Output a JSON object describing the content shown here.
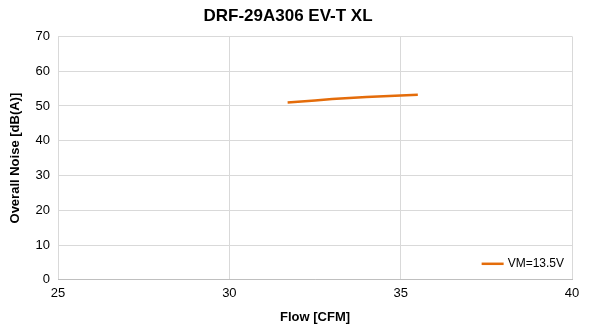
{
  "chart_data": {
    "type": "line",
    "title": "DRF-29A306 EV-T XL",
    "x_label": "Flow [CFM]",
    "y_label": "Overall Noise [dB(A)]",
    "x": [
      31.7,
      32.5,
      33.5,
      34.5,
      35.5
    ],
    "series": [
      {
        "name": "VM=13.5V",
        "color": "#e46c0a",
        "values": [
          51.0,
          51.6,
          52.3,
          52.8,
          53.2
        ],
        "marker": "none",
        "line_style": "solid"
      }
    ],
    "xlim": [
      25,
      40
    ],
    "xticks": [
      25,
      30,
      35,
      40
    ],
    "ylim": [
      0,
      70
    ],
    "yticks": [
      0,
      10,
      20,
      30,
      40,
      50,
      60,
      70
    ],
    "grid": true,
    "legend": "lower right"
  }
}
